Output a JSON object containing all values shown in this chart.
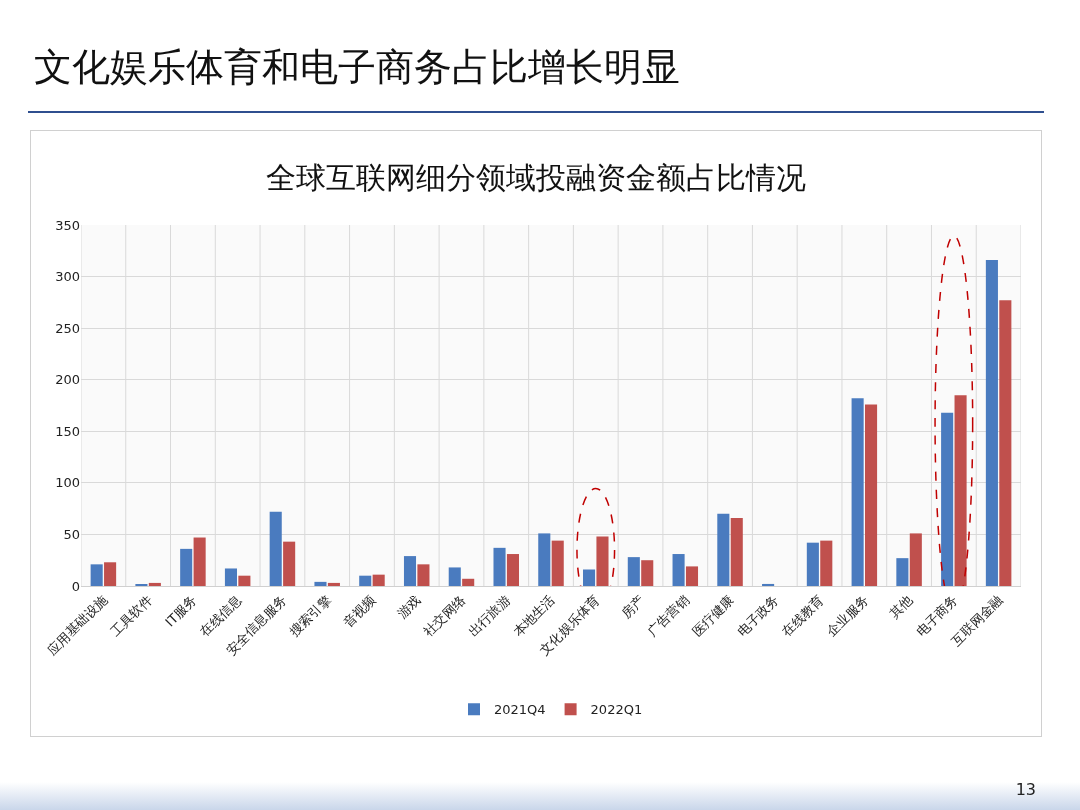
{
  "chart_data": {
    "type": "bar",
    "title": "文化娱乐体育和电子商务占比增长明显",
    "subtitle": "全球互联网细分领域投融资金额占比情况",
    "categories": [
      "应用基础设施",
      "工具软件",
      "IT服务",
      "在线信息",
      "安全信息服务",
      "搜索引擎",
      "音视频",
      "游戏",
      "社交网络",
      "出行旅游",
      "本地生活",
      "文化娱乐体育",
      "房产",
      "广告营销",
      "医疗健康",
      "电子政务",
      "在线教育",
      "企业服务",
      "其他",
      "电子商务",
      "互联网金融"
    ],
    "series": [
      {
        "name": "2021Q4",
        "color": "#4a7bbf",
        "values": [
          21,
          1,
          36,
          17,
          72,
          4,
          10,
          29,
          18,
          37,
          51,
          16,
          28,
          31,
          70,
          2,
          42,
          182,
          27,
          168,
          316
        ]
      },
      {
        "name": "2022Q1",
        "color": "#c0504d",
        "values": [
          23,
          3,
          47,
          10,
          43,
          3,
          11,
          21,
          7,
          31,
          44,
          48,
          25,
          19,
          66,
          0,
          44,
          176,
          51,
          185,
          277
        ]
      }
    ],
    "ylim": [
      0,
      350
    ],
    "yticks": [
      0,
      50,
      100,
      150,
      200,
      250,
      300,
      350
    ],
    "grid": true,
    "legend": "bottom",
    "annotations": [
      "13"
    ]
  }
}
